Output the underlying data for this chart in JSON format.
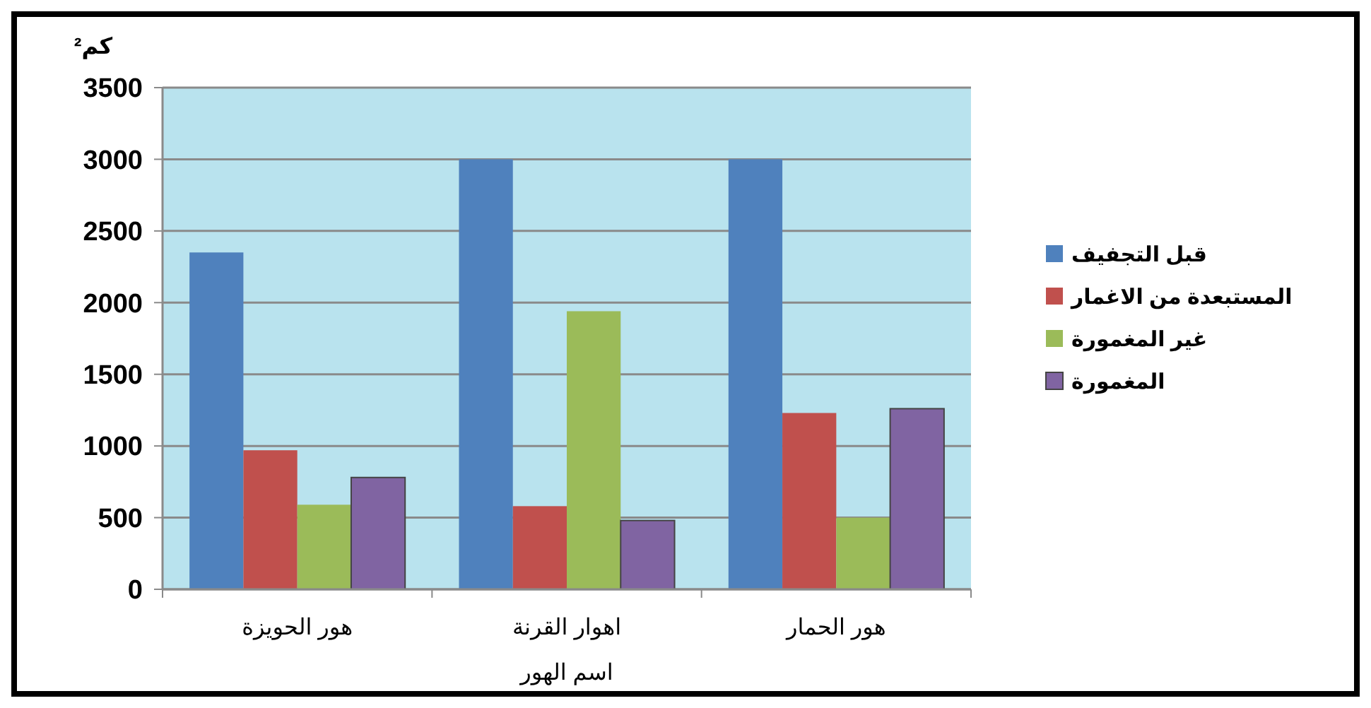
{
  "chart_data": {
    "type": "bar",
    "ylabel": "كم²",
    "xlabel": "اسم الهور",
    "categories": [
      "هور الحويزة",
      "اهوار القرنة",
      "هور الحمار"
    ],
    "series": [
      {
        "name": "قبل التجفيف",
        "color": "#4f81bd",
        "values": [
          2350,
          3000,
          3000
        ]
      },
      {
        "name": "المستبعدة من الاغمار",
        "color": "#c0504d",
        "values": [
          970,
          580,
          1230
        ]
      },
      {
        "name": "غير المغمورة",
        "color": "#9bbb59",
        "values": [
          590,
          1940,
          500
        ]
      },
      {
        "name": "المغمورة",
        "color": "#8064a2",
        "values": [
          780,
          480,
          1260
        ]
      }
    ],
    "ylim": [
      0,
      3500
    ],
    "yticks": [
      0,
      500,
      1000,
      1500,
      2000,
      2500,
      3000,
      3500
    ],
    "grid": "y",
    "legend": "right"
  }
}
